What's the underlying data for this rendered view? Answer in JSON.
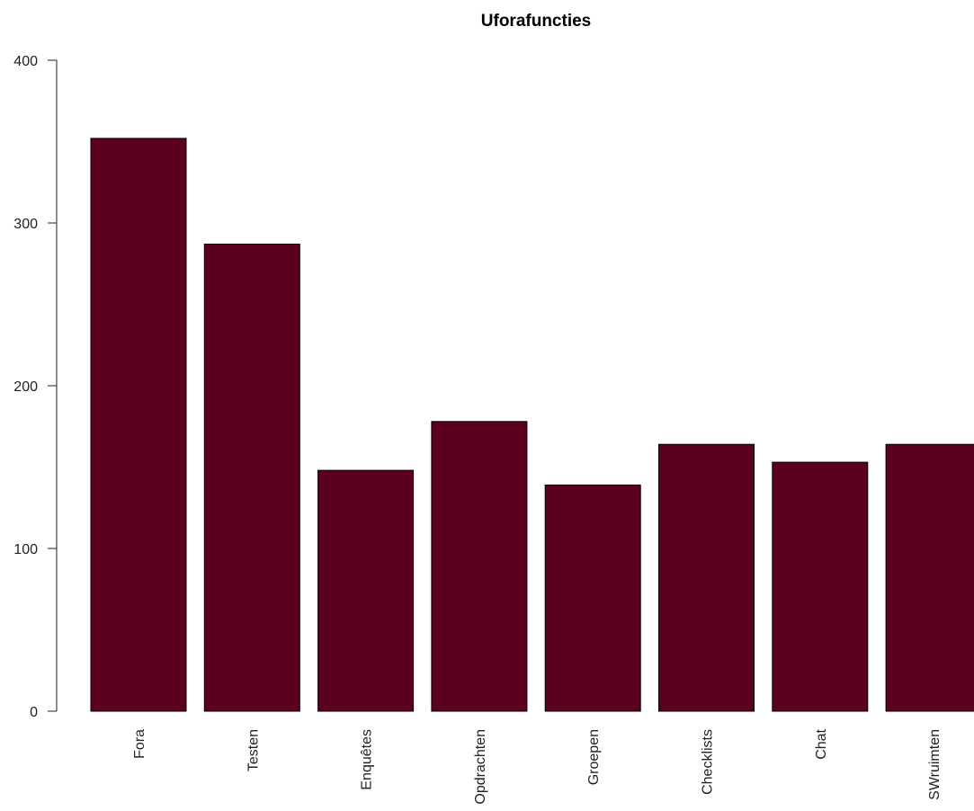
{
  "chart_data": {
    "type": "bar",
    "title": "Uforafuncties",
    "xlabel": "",
    "ylabel": "",
    "categories": [
      "Fora",
      "Testen",
      "Enquêtes",
      "Opdrachten",
      "Groepen",
      "Checklists",
      "Chat",
      "SWruimten"
    ],
    "values": [
      352,
      287,
      148,
      178,
      139,
      164,
      153,
      164
    ],
    "ylim": [
      0,
      400
    ],
    "yticks": [
      0,
      100,
      200,
      300,
      400
    ],
    "yticks_labels": [
      "0",
      "100",
      "200",
      "300",
      "400"
    ],
    "bar_color": "#5c0020",
    "grid": false,
    "legend": "none"
  }
}
